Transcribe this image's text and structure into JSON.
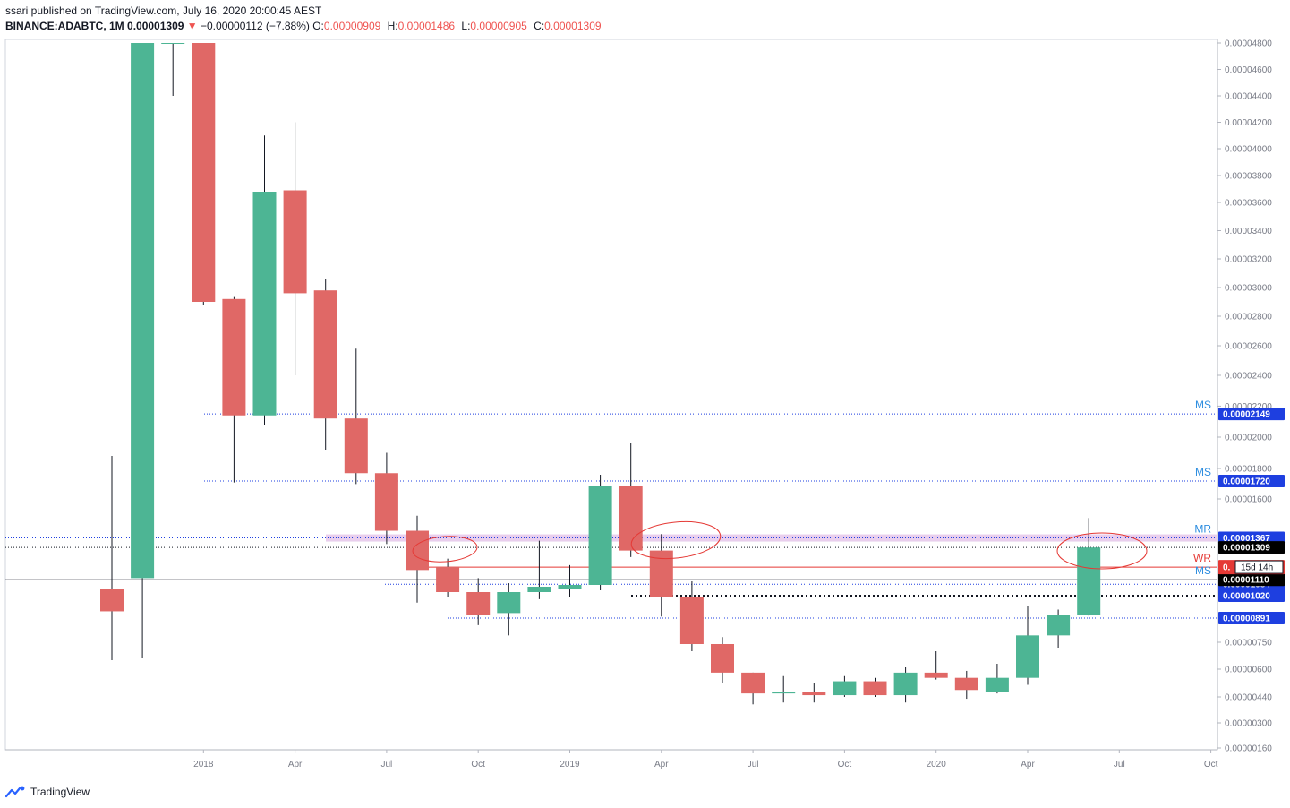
{
  "header": {
    "published": "ssari published on TradingView.com, July 16, 2020 20:00:45 AEST",
    "symbol": "BINANCE:ADABTC, 1M",
    "last": "0.00001309",
    "change_arrow": "▼",
    "change": "−0.00000112 (−7.88%)",
    "o_label": "O:",
    "o_value": "0.00000909",
    "h_label": "H:",
    "h_value": "0.00001486",
    "l_label": "L:",
    "l_value": "0.00000905",
    "c_label": "C:",
    "c_value": "0.00001309"
  },
  "footer": {
    "brand": "TradingView",
    "logo_icon": "tradingview-logo-icon"
  },
  "colors": {
    "up": "#4db594",
    "down": "#e06866",
    "accent_blue": "#1e3fe0",
    "ms_text": "#2e8ee0",
    "wr_red": "#e53935",
    "mr_band": "#e1bee7"
  },
  "chart_data": {
    "type": "candlestick",
    "symbol": "BINANCE:ADABTC",
    "interval": "1M",
    "ylim": [
      1.6e-06,
      4.8e-06
    ],
    "y_ticks": [
      "0.00000160",
      "0.00000300",
      "0.00000440",
      "0.00000600",
      "0.00000750",
      "0.00000891",
      "0.00001020",
      "0.00001084",
      "0.00001110",
      "0.00001309",
      "0.00001367",
      "0.00001600",
      "0.00001720",
      "0.00001800",
      "0.00002000",
      "0.00002149",
      "0.00002200",
      "0.00002400",
      "0.00002600",
      "0.00002800",
      "0.00003000",
      "0.00003200",
      "0.00003400",
      "0.00003600",
      "0.00003800",
      "0.00004000",
      "0.00004200",
      "0.00004400",
      "0.00004600",
      "0.00004800"
    ],
    "x_ticks": [
      "2018",
      "Apr",
      "Jul",
      "Oct",
      "2019",
      "Apr",
      "Jul",
      "Oct",
      "2020",
      "Apr",
      "Jul",
      "Oct"
    ],
    "candles": [
      {
        "date": "2017-10",
        "o": 1.055e-05,
        "h": 1.88e-05,
        "l": 6.5e-06,
        "c": 9.3e-06
      },
      {
        "date": "2017-11",
        "o": 1.12e-05,
        "h": 4.8e-05,
        "l": 6.6e-06,
        "c": 4.8e-05
      },
      {
        "date": "2017-12",
        "o": 4.8e-05,
        "h": 4.8e-05,
        "l": 4.4e-05,
        "c": 4.8e-05
      },
      {
        "date": "2018-01",
        "o": 4.8e-05,
        "h": 4.8e-05,
        "l": 2.88e-05,
        "c": 2.9e-05
      },
      {
        "date": "2018-02",
        "o": 2.92e-05,
        "h": 2.94e-05,
        "l": 1.71e-05,
        "c": 2.14e-05
      },
      {
        "date": "2018-03",
        "o": 2.14e-05,
        "h": 4.1e-05,
        "l": 2.08e-05,
        "c": 3.68e-05
      },
      {
        "date": "2018-04",
        "o": 3.69e-05,
        "h": 4.2e-05,
        "l": 2.4e-05,
        "c": 2.96e-05
      },
      {
        "date": "2018-05",
        "o": 2.98e-05,
        "h": 3.06e-05,
        "l": 1.92e-05,
        "c": 2.12e-05
      },
      {
        "date": "2018-06",
        "o": 2.12e-05,
        "h": 2.58e-05,
        "l": 1.7e-05,
        "c": 1.77e-05
      },
      {
        "date": "2018-07",
        "o": 1.77e-05,
        "h": 1.9e-05,
        "l": 1.33e-05,
        "c": 1.41e-05
      },
      {
        "date": "2018-08",
        "o": 1.41e-05,
        "h": 1.5e-05,
        "l": 9.8e-06,
        "c": 1.17e-05
      },
      {
        "date": "2018-09",
        "o": 1.19e-05,
        "h": 1.24e-05,
        "l": 1.01e-05,
        "c": 1.04e-05
      },
      {
        "date": "2018-10",
        "o": 1.04e-05,
        "h": 1.12e-05,
        "l": 8.5e-06,
        "c": 9.1e-06
      },
      {
        "date": "2018-11",
        "o": 9.2e-06,
        "h": 1.09e-05,
        "l": 7.9e-06,
        "c": 1.04e-05
      },
      {
        "date": "2018-12",
        "o": 1.04e-05,
        "h": 1.35e-05,
        "l": 1e-05,
        "c": 1.07e-05
      },
      {
        "date": "2019-01",
        "o": 1.06e-05,
        "h": 1.2e-05,
        "l": 1.01e-05,
        "c": 1.08e-05
      },
      {
        "date": "2019-02",
        "o": 1.08e-05,
        "h": 1.76e-05,
        "l": 1.05e-05,
        "c": 1.69e-05
      },
      {
        "date": "2019-03",
        "o": 1.69e-05,
        "h": 1.96e-05,
        "l": 1.25e-05,
        "c": 1.29e-05
      },
      {
        "date": "2019-04",
        "o": 1.29e-05,
        "h": 1.39e-05,
        "l": 9e-06,
        "c": 1.01e-05
      },
      {
        "date": "2019-05",
        "o": 1.01e-05,
        "h": 1.1e-05,
        "l": 7e-06,
        "c": 7.4e-06
      },
      {
        "date": "2019-06",
        "o": 7.4e-06,
        "h": 7.8e-06,
        "l": 5.2e-06,
        "c": 5.8e-06
      },
      {
        "date": "2019-07",
        "o": 5.8e-06,
        "h": 5.8e-06,
        "l": 4e-06,
        "c": 4.6e-06
      },
      {
        "date": "2019-08",
        "o": 4.6e-06,
        "h": 5.6e-06,
        "l": 4.1e-06,
        "c": 4.7e-06
      },
      {
        "date": "2019-09",
        "o": 4.7e-06,
        "h": 5.2e-06,
        "l": 4.1e-06,
        "c": 4.5e-06
      },
      {
        "date": "2019-10",
        "o": 4.5e-06,
        "h": 5.6e-06,
        "l": 4.4e-06,
        "c": 5.3e-06
      },
      {
        "date": "2019-11",
        "o": 5.3e-06,
        "h": 5.5e-06,
        "l": 4.4e-06,
        "c": 4.5e-06
      },
      {
        "date": "2019-12",
        "o": 4.5e-06,
        "h": 6.1e-06,
        "l": 4.1e-06,
        "c": 5.8e-06
      },
      {
        "date": "2020-01",
        "o": 5.8e-06,
        "h": 7e-06,
        "l": 5.4e-06,
        "c": 5.5e-06
      },
      {
        "date": "2020-02",
        "o": 5.5e-06,
        "h": 5.9e-06,
        "l": 4.3e-06,
        "c": 4.8e-06
      },
      {
        "date": "2020-03",
        "o": 4.7e-06,
        "h": 6.3e-06,
        "l": 4.6e-06,
        "c": 5.5e-06
      },
      {
        "date": "2020-04",
        "o": 5.5e-06,
        "h": 9.6e-06,
        "l": 5.1e-06,
        "c": 7.9e-06
      },
      {
        "date": "2020-05",
        "o": 7.9e-06,
        "h": 9.4e-06,
        "l": 7.2e-06,
        "c": 9.1e-06
      },
      {
        "date": "2020-06",
        "o": 9.09e-06,
        "h": 1.486e-05,
        "l": 9.05e-06,
        "c": 1.309e-05
      }
    ],
    "levels": [
      {
        "value": 2.149e-05,
        "text": "MS",
        "label": "0.00002149",
        "style": "dotted"
      },
      {
        "value": 1.72e-05,
        "text": "MS",
        "label": "0.00001720",
        "style": "dotted"
      },
      {
        "value": 1.367e-05,
        "text": "MR",
        "label": "0.00001367",
        "style": "band"
      },
      {
        "value": 1.309e-05,
        "label": "0.00001309",
        "style": "last"
      },
      {
        "value": 1.188e-05,
        "text": "WR",
        "label": "0.",
        "countdown": "15d 14h",
        "style": "red"
      },
      {
        "value": 1.11e-05,
        "text": "MS",
        "label": "0.00001110",
        "style": "solid-black"
      },
      {
        "value": 1.084e-05,
        "label": "0.00001084",
        "style": "dotted"
      },
      {
        "value": 1.02e-05,
        "label": "0.00001020",
        "style": "dotted-thick"
      },
      {
        "value": 8.91e-06,
        "label": "0.00000891",
        "style": "dotted"
      }
    ]
  }
}
